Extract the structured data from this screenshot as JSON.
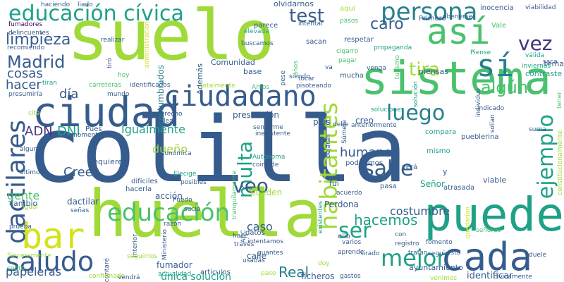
{
  "palette": {
    "background": "#ffffff",
    "lime": "#a0da39",
    "green": "#4ac16d",
    "teal": "#1fa187",
    "cyan": "#277f8e",
    "blue": "#365c8d",
    "indigo": "#46327e",
    "purple": "#440154"
  },
  "words": [
    {
      "text": "colilla",
      "color": "#365c8d"
    },
    {
      "text": "suelo",
      "color": "#a0da39"
    },
    {
      "text": "huella",
      "color": "#a0da39"
    },
    {
      "text": "sistema",
      "color": "#4ac16d"
    },
    {
      "text": "puede",
      "color": "#1fa187"
    },
    {
      "text": "así",
      "color": "#4ac16d"
    },
    {
      "text": "ciudadano",
      "color": "#365c8d"
    },
    {
      "text": "ciudad",
      "color": "#365c8d"
    },
    {
      "text": "cada",
      "color": "#365c8d"
    },
    {
      "text": "bar",
      "color": "#d4e21a"
    },
    {
      "text": "educación cívica",
      "color": "#1fa187"
    },
    {
      "text": "sí",
      "color": "#277f8e"
    },
    {
      "text": "persona",
      "color": "#277f8e"
    },
    {
      "text": "educación",
      "color": "#4ac16d"
    },
    {
      "text": "saludo",
      "color": "#365c8d"
    },
    {
      "text": "mejor",
      "color": "#1fa187"
    },
    {
      "text": "ejemplo",
      "color": "#1fa187"
    },
    {
      "text": "habitantes",
      "color": "#a0da39"
    },
    {
      "text": "dactilares",
      "color": "#365c8d"
    },
    {
      "text": "sabe",
      "color": "#365c8d"
    },
    {
      "text": "multa",
      "color": "#1fa187"
    },
    {
      "text": "luego",
      "color": "#277f8e"
    },
    {
      "text": "test",
      "color": "#365c8d"
    },
    {
      "text": "algún",
      "color": "#4ac16d"
    },
    {
      "text": "vez",
      "color": "#46327e"
    },
    {
      "text": "tira",
      "color": "#a0da39"
    },
    {
      "text": "caro",
      "color": "#365c8d"
    },
    {
      "text": "Madrid",
      "color": "#365c8d"
    },
    {
      "text": "veo",
      "color": "#365c8d"
    },
    {
      "text": "ser",
      "color": "#1fa187"
    },
    {
      "text": "limpieza",
      "color": "#365c8d"
    },
    {
      "text": "ADN",
      "color": "#46327e"
    },
    {
      "text": "DNI",
      "color": "#1fa187"
    },
    {
      "text": "Igualmente",
      "color": "#1fa187"
    },
    {
      "text": "papeleras",
      "color": "#365c8d"
    },
    {
      "text": "hacemos",
      "color": "#1fa187"
    },
    {
      "text": "costumbre",
      "color": "#365c8d"
    },
    {
      "text": "Crees",
      "color": "#365c8d"
    },
    {
      "text": "dueño",
      "color": "#a0da39"
    },
    {
      "text": "Real",
      "color": "#277f8e"
    },
    {
      "text": "caso",
      "color": "#365c8d"
    },
    {
      "text": "cosas",
      "color": "#365c8d"
    },
    {
      "text": "hacer",
      "color": "#365c8d"
    },
    {
      "text": "día",
      "color": "#365c8d"
    },
    {
      "text": "gente",
      "color": "#4ac16d"
    },
    {
      "text": "humanos",
      "color": "#365c8d"
    },
    {
      "text": "única solución",
      "color": "#1fa187"
    },
    {
      "text": "fumadores",
      "color": "#440154"
    },
    {
      "text": "haciendo",
      "color": "#365c8d"
    },
    {
      "text": "liado",
      "color": "#365c8d"
    },
    {
      "text": "delincuentes",
      "color": "#365c8d"
    },
    {
      "text": "recomiendo",
      "color": "#365c8d"
    },
    {
      "text": "realizar",
      "color": "#365c8d"
    },
    {
      "text": "administración",
      "color": "#d4e21a"
    },
    {
      "text": "acostumbrados",
      "color": "#277f8e"
    },
    {
      "text": "olvidarnos",
      "color": "#365c8d"
    },
    {
      "text": "aquí",
      "color": "#a0da39"
    },
    {
      "text": "intentar",
      "color": "#365c8d"
    },
    {
      "text": "pasos",
      "color": "#4ac16d"
    },
    {
      "text": "parece",
      "color": "#365c8d"
    },
    {
      "text": "elevada",
      "color": "#1fa187"
    },
    {
      "text": "buscamos",
      "color": "#365c8d"
    },
    {
      "text": "sacan",
      "color": "#365c8d"
    },
    {
      "text": "años",
      "color": "#4ac16d"
    },
    {
      "text": "siendo",
      "color": "#365c8d"
    },
    {
      "text": "cigarro",
      "color": "#4ac16d"
    },
    {
      "text": "pagar",
      "color": "#4ac16d"
    },
    {
      "text": "va",
      "color": "#365c8d"
    },
    {
      "text": "respetar",
      "color": "#365c8d"
    },
    {
      "text": "propaganda",
      "color": "#1fa187"
    },
    {
      "text": "Primero",
      "color": "#365c8d"
    },
    {
      "text": "Vale",
      "color": "#4ac16d"
    },
    {
      "text": "inocencia",
      "color": "#365c8d"
    },
    {
      "text": "viabilidad",
      "color": "#365c8d"
    },
    {
      "text": "obenerse",
      "color": "#365c8d"
    },
    {
      "text": "Piense",
      "color": "#1fa187"
    },
    {
      "text": "válida",
      "color": "#1fa187"
    },
    {
      "text": "saca",
      "color": "#365c8d"
    },
    {
      "text": "tema",
      "color": "#365c8d"
    },
    {
      "text": "inviernos",
      "color": "#1fa187"
    },
    {
      "text": "contraste",
      "color": "#1fa187"
    },
    {
      "text": "turismo",
      "color": "#4ac16d"
    },
    {
      "text": "piensas",
      "color": "#365c8d"
    },
    {
      "text": "Comunidad",
      "color": "#365c8d"
    },
    {
      "text": "Además",
      "color": "#365c8d"
    },
    {
      "text": "base",
      "color": "#365c8d"
    },
    {
      "text": "pese",
      "color": "#365c8d"
    },
    {
      "text": "mucha",
      "color": "#365c8d"
    },
    {
      "text": "venga",
      "color": "#365c8d"
    },
    {
      "text": "tocar",
      "color": "#365c8d"
    },
    {
      "text": "tiró",
      "color": "#365c8d"
    },
    {
      "text": "hoy",
      "color": "#4ac16d"
    },
    {
      "text": "tiran",
      "color": "#1fa187"
    },
    {
      "text": "presumiría",
      "color": "#365c8d"
    },
    {
      "text": "carreteras",
      "color": "#4ac16d"
    },
    {
      "text": "identificados",
      "color": "#365c8d"
    },
    {
      "text": "totalmente",
      "color": "#a0da39"
    },
    {
      "text": "Amos",
      "color": "#4ac16d"
    },
    {
      "text": "pisoteando",
      "color": "#365c8d"
    },
    {
      "text": "solución",
      "color": "#1fa187"
    },
    {
      "text": "individuo",
      "color": "#365c8d"
    },
    {
      "text": "tener",
      "color": "#4ac16d"
    },
    {
      "text": "mundo",
      "color": "#365c8d"
    },
    {
      "text": "derecho",
      "color": "#365c8d"
    },
    {
      "text": "lea",
      "color": "#365c8d"
    },
    {
      "text": "presunción",
      "color": "#365c8d"
    },
    {
      "text": "país",
      "color": "#365c8d"
    },
    {
      "text": "sentarme",
      "color": "#365c8d"
    },
    {
      "text": "creo",
      "color": "#365c8d"
    },
    {
      "text": "anteriormente",
      "color": "#365c8d"
    },
    {
      "text": "soluciones",
      "color": "#1fa187"
    },
    {
      "text": "indicado",
      "color": "#365c8d"
    },
    {
      "text": "solían",
      "color": "#365c8d"
    },
    {
      "text": "cita",
      "color": "#a0da39"
    },
    {
      "text": "Pues",
      "color": "#365c8d"
    },
    {
      "text": "momento",
      "color": "#365c8d"
    },
    {
      "text": "inexistente",
      "color": "#365c8d"
    },
    {
      "text": "Súmele",
      "color": "#365c8d"
    },
    {
      "text": "debe",
      "color": "#365c8d"
    },
    {
      "text": "compara",
      "color": "#1fa187"
    },
    {
      "text": "suma",
      "color": "#365c8d"
    },
    {
      "text": "pueblerina",
      "color": "#365c8d"
    },
    {
      "text": "podríamos",
      "color": "#365c8d"
    },
    {
      "text": "alguna",
      "color": "#365c8d"
    },
    {
      "text": "requiere",
      "color": "#365c8d"
    },
    {
      "text": "económica",
      "color": "#365c8d"
    },
    {
      "text": "Autónoma",
      "color": "#1fa187"
    },
    {
      "text": "dejarán",
      "color": "#365c8d"
    },
    {
      "text": "mismo",
      "color": "#1fa187"
    },
    {
      "text": "viable",
      "color": "#365c8d"
    },
    {
      "text": "constitucionalmente",
      "color": "#a0da39"
    },
    {
      "text": "último",
      "color": "#365c8d"
    },
    {
      "text": "hacerla",
      "color": "#365c8d"
    },
    {
      "text": "difíciles",
      "color": "#365c8d"
    },
    {
      "text": "posibles",
      "color": "#365c8d"
    },
    {
      "text": "coincide",
      "color": "#365c8d"
    },
    {
      "text": "tranquilamente",
      "color": "#4ac16d"
    },
    {
      "text": "Elecige",
      "color": "#1fa187"
    },
    {
      "text": "verá",
      "color": "#365c8d"
    },
    {
      "text": "atrasada",
      "color": "#365c8d"
    },
    {
      "text": "igual",
      "color": "#a0da39"
    },
    {
      "text": "acción",
      "color": "#365c8d"
    },
    {
      "text": "Puedo",
      "color": "#365c8d"
    },
    {
      "text": "fuí",
      "color": "#365c8d"
    },
    {
      "text": "y",
      "color": "#365c8d"
    },
    {
      "text": "dactilar",
      "color": "#365c8d"
    },
    {
      "text": "señas",
      "color": "#365c8d"
    },
    {
      "text": "sucia",
      "color": "#365c8d"
    },
    {
      "text": "pueden",
      "color": "#a0da39"
    },
    {
      "text": "existentes",
      "color": "#1fa187"
    },
    {
      "text": "acuerdo",
      "color": "#365c8d"
    },
    {
      "text": "pasa",
      "color": "#365c8d"
    },
    {
      "text": "Señor",
      "color": "#1fa187"
    },
    {
      "text": "quedarían",
      "color": "#d4e21a"
    },
    {
      "text": "Perdona",
      "color": "#365c8d"
    },
    {
      "text": "cambio",
      "color": "#365c8d"
    },
    {
      "text": "prueba",
      "color": "#365c8d"
    },
    {
      "text": "razón",
      "color": "#365c8d"
    },
    {
      "text": "ABC",
      "color": "#365c8d"
    },
    {
      "text": "Ministerio",
      "color": "#365c8d"
    },
    {
      "text": "datos",
      "color": "#365c8d"
    },
    {
      "text": "intentamos",
      "color": "#365c8d"
    },
    {
      "text": "ello",
      "color": "#365c8d"
    },
    {
      "text": "con",
      "color": "#365c8d"
    },
    {
      "text": "registro",
      "color": "#365c8d"
    },
    {
      "text": "señores",
      "color": "#4ac16d"
    },
    {
      "text": "varios",
      "color": "#365c8d"
    },
    {
      "text": "fomento",
      "color": "#365c8d"
    },
    {
      "text": "Interior",
      "color": "#365c8d"
    },
    {
      "text": "hace",
      "color": "#365c8d"
    },
    {
      "text": "través",
      "color": "#365c8d"
    },
    {
      "text": "guantes",
      "color": "#365c8d"
    },
    {
      "text": "aprende",
      "color": "#365c8d"
    },
    {
      "text": "calle",
      "color": "#365c8d"
    },
    {
      "text": "tirado",
      "color": "#365c8d"
    },
    {
      "text": "ayuntamiento",
      "color": "#365c8d"
    },
    {
      "text": "tratan",
      "color": "#365c8d"
    },
    {
      "text": "seguir",
      "color": "#365c8d"
    },
    {
      "text": "esto",
      "color": "#365c8d"
    },
    {
      "text": "duele",
      "color": "#365c8d"
    },
    {
      "text": "cobro",
      "color": "#4ac16d"
    },
    {
      "text": "Sinceramente",
      "color": "#a0da39"
    },
    {
      "text": "seguimos",
      "color": "#a0da39"
    },
    {
      "text": "contaré",
      "color": "#365c8d"
    },
    {
      "text": "artículos",
      "color": "#365c8d"
    },
    {
      "text": "usadas",
      "color": "#365c8d"
    },
    {
      "text": "doy",
      "color": "#a0da39"
    },
    {
      "text": "paso",
      "color": "#a0da39"
    },
    {
      "text": "identificar",
      "color": "#365c8d"
    },
    {
      "text": "fumador",
      "color": "#365c8d"
    },
    {
      "text": "actualidad",
      "color": "#1fa187"
    },
    {
      "text": "confirmado",
      "color": "#a0da39"
    },
    {
      "text": "vendrá",
      "color": "#365c8d"
    },
    {
      "text": "ficheros",
      "color": "#365c8d"
    },
    {
      "text": "gastos",
      "color": "#365c8d"
    },
    {
      "text": "venimos",
      "color": "#a0da39"
    },
    {
      "text": "cívicamente",
      "color": "#365c8d"
    }
  ]
}
